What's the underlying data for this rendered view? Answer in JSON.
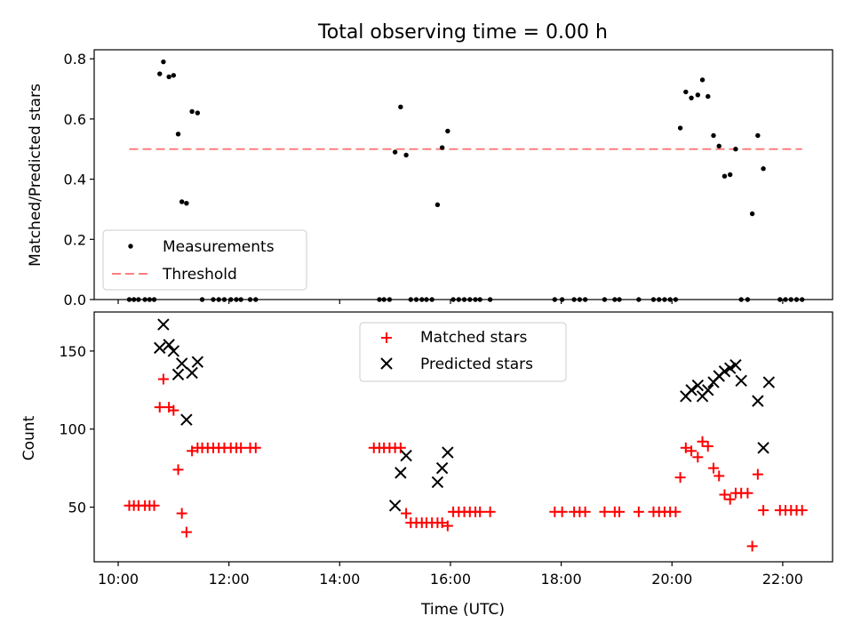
{
  "chart_data": [
    {
      "type": "scatter",
      "title": "Total observing time = 0.00 h",
      "xlabel": "",
      "ylabel": "Matched/Predicted stars",
      "xlim": [
        "09:34",
        "22:54"
      ],
      "ylim": [
        0,
        0.83
      ],
      "yticks": [
        0.0,
        0.2,
        0.4,
        0.6,
        0.8
      ],
      "ytick_labels": [
        "0.0",
        "0.2",
        "0.4",
        "0.6",
        "0.8"
      ],
      "xticks": [
        "10:00",
        "12:00",
        "14:00",
        "16:00",
        "18:00",
        "20:00",
        "22:00"
      ],
      "legend_position": "lower-left",
      "series": [
        {
          "name": "Measurements",
          "marker": "dot",
          "color": "#000000",
          "x": [
            "10:12",
            "10:17",
            "10:22",
            "10:29",
            "10:34",
            "10:39",
            "10:45",
            "10:49",
            "10:55",
            "11:00",
            "11:05",
            "11:09",
            "11:14",
            "11:20",
            "11:26",
            "11:31",
            "11:43",
            "11:49",
            "11:55",
            "12:02",
            "12:08",
            "12:13",
            "12:23",
            "12:29",
            "14:43",
            "14:48",
            "14:54",
            "15:00",
            "15:06",
            "15:12",
            "15:17",
            "15:23",
            "15:29",
            "15:34",
            "15:40",
            "15:46",
            "15:51",
            "15:57",
            "16:03",
            "16:09",
            "16:15",
            "16:21",
            "16:27",
            "16:32",
            "16:43",
            "17:53",
            "18:01",
            "18:14",
            "18:20",
            "18:26",
            "18:47",
            "18:58",
            "19:03",
            "19:24",
            "19:40",
            "19:46",
            "19:52",
            "19:58",
            "20:04",
            "20:09",
            "20:15",
            "20:21",
            "20:28",
            "20:33",
            "20:39",
            "20:45",
            "20:51",
            "20:57",
            "21:03",
            "21:09",
            "21:15",
            "21:22",
            "21:27",
            "21:33",
            "21:39",
            "21:57",
            "22:03",
            "22:09",
            "22:15",
            "22:21"
          ],
          "y": [
            0,
            0,
            0,
            0,
            0,
            0,
            0.75,
            0.79,
            0.74,
            0.745,
            0.55,
            0.325,
            0.32,
            0.625,
            0.62,
            0,
            0,
            0,
            0,
            0,
            0,
            0,
            0,
            0,
            0,
            0,
            0,
            0.49,
            0.64,
            0.48,
            0,
            0,
            0,
            0,
            0,
            0.315,
            0.505,
            0.56,
            0,
            0,
            0,
            0,
            0,
            0,
            0,
            0,
            0,
            0,
            0,
            0,
            0,
            0,
            0,
            0,
            0,
            0,
            0,
            0,
            0,
            0.57,
            0.69,
            0.67,
            0.68,
            0.73,
            0.675,
            0.545,
            0.51,
            0.41,
            0.415,
            0.5,
            0,
            0,
            0.285,
            0.545,
            0.435,
            0,
            0,
            0,
            0,
            0
          ]
        },
        {
          "name": "Threshold",
          "style": "dashed",
          "color": "#ff7f7f",
          "x": [
            "10:12",
            "22:21"
          ],
          "y": [
            0.5,
            0.5
          ]
        }
      ]
    },
    {
      "type": "scatter",
      "title": "",
      "xlabel": "Time (UTC)",
      "ylabel": "Count",
      "xlim": [
        "09:34",
        "22:54"
      ],
      "ylim": [
        15,
        175
      ],
      "yticks": [
        50,
        100,
        150
      ],
      "ytick_labels": [
        "50",
        "100",
        "150"
      ],
      "xticks": [
        "10:00",
        "12:00",
        "14:00",
        "16:00",
        "18:00",
        "20:00",
        "22:00"
      ],
      "xtick_labels": [
        "10:00",
        "12:00",
        "14:00",
        "16:00",
        "18:00",
        "20:00",
        "22:00"
      ],
      "legend_position": "upper-center",
      "series": [
        {
          "name": "Matched stars",
          "marker": "plus",
          "color": "#ff0000",
          "x": [
            "10:12",
            "10:17",
            "10:22",
            "10:29",
            "10:34",
            "10:39",
            "10:45",
            "10:49",
            "10:55",
            "11:00",
            "11:05",
            "11:09",
            "11:14",
            "11:20",
            "11:26",
            "11:31",
            "11:37",
            "11:43",
            "11:49",
            "11:55",
            "12:02",
            "12:08",
            "12:13",
            "12:23",
            "12:29",
            "14:37",
            "14:43",
            "14:48",
            "14:54",
            "15:00",
            "15:06",
            "15:12",
            "15:17",
            "15:23",
            "15:29",
            "15:34",
            "15:40",
            "15:46",
            "15:51",
            "15:57",
            "16:03",
            "16:09",
            "16:15",
            "16:21",
            "16:27",
            "16:32",
            "16:43",
            "17:53",
            "18:01",
            "18:14",
            "18:20",
            "18:26",
            "18:47",
            "18:58",
            "19:03",
            "19:24",
            "19:40",
            "19:46",
            "19:52",
            "19:58",
            "20:04",
            "20:09",
            "20:15",
            "20:21",
            "20:28",
            "20:33",
            "20:39",
            "20:45",
            "20:51",
            "20:57",
            "21:03",
            "21:09",
            "21:15",
            "21:22",
            "21:27",
            "21:33",
            "21:39",
            "21:57",
            "22:03",
            "22:09",
            "22:15",
            "22:21"
          ],
          "y": [
            51,
            51,
            51,
            51,
            51,
            51,
            114,
            132,
            114,
            112,
            74,
            46,
            34,
            86,
            88,
            88,
            88,
            88,
            88,
            88,
            88,
            88,
            88,
            88,
            88,
            88,
            88,
            88,
            88,
            88,
            88,
            46,
            40,
            40,
            40,
            40,
            40,
            40,
            40,
            38,
            47,
            47,
            47,
            47,
            47,
            47,
            47,
            47,
            47,
            47,
            47,
            47,
            47,
            47,
            47,
            47,
            47,
            47,
            47,
            47,
            47,
            69,
            88,
            86,
            82,
            92,
            89,
            75,
            70,
            58,
            55,
            59,
            59,
            59,
            25,
            71,
            48,
            48,
            48,
            48,
            48,
            48
          ]
        },
        {
          "name": "Predicted stars",
          "marker": "x",
          "color": "#000000",
          "x": [
            "10:45",
            "10:49",
            "10:55",
            "11:00",
            "11:05",
            "11:09",
            "11:14",
            "11:20",
            "11:26",
            "15:00",
            "15:06",
            "15:12",
            "15:46",
            "15:51",
            "15:57",
            "20:15",
            "20:21",
            "20:28",
            "20:33",
            "20:39",
            "20:45",
            "20:51",
            "20:57",
            "21:03",
            "21:09",
            "21:15",
            "21:33",
            "21:39",
            "21:45"
          ],
          "y": [
            152,
            167,
            154,
            150,
            135,
            142,
            106,
            136,
            143,
            51,
            72,
            83,
            66,
            75,
            85,
            121,
            125,
            128,
            121,
            125,
            130,
            134,
            137,
            139,
            141,
            131,
            118,
            88,
            130
          ]
        }
      ]
    }
  ]
}
